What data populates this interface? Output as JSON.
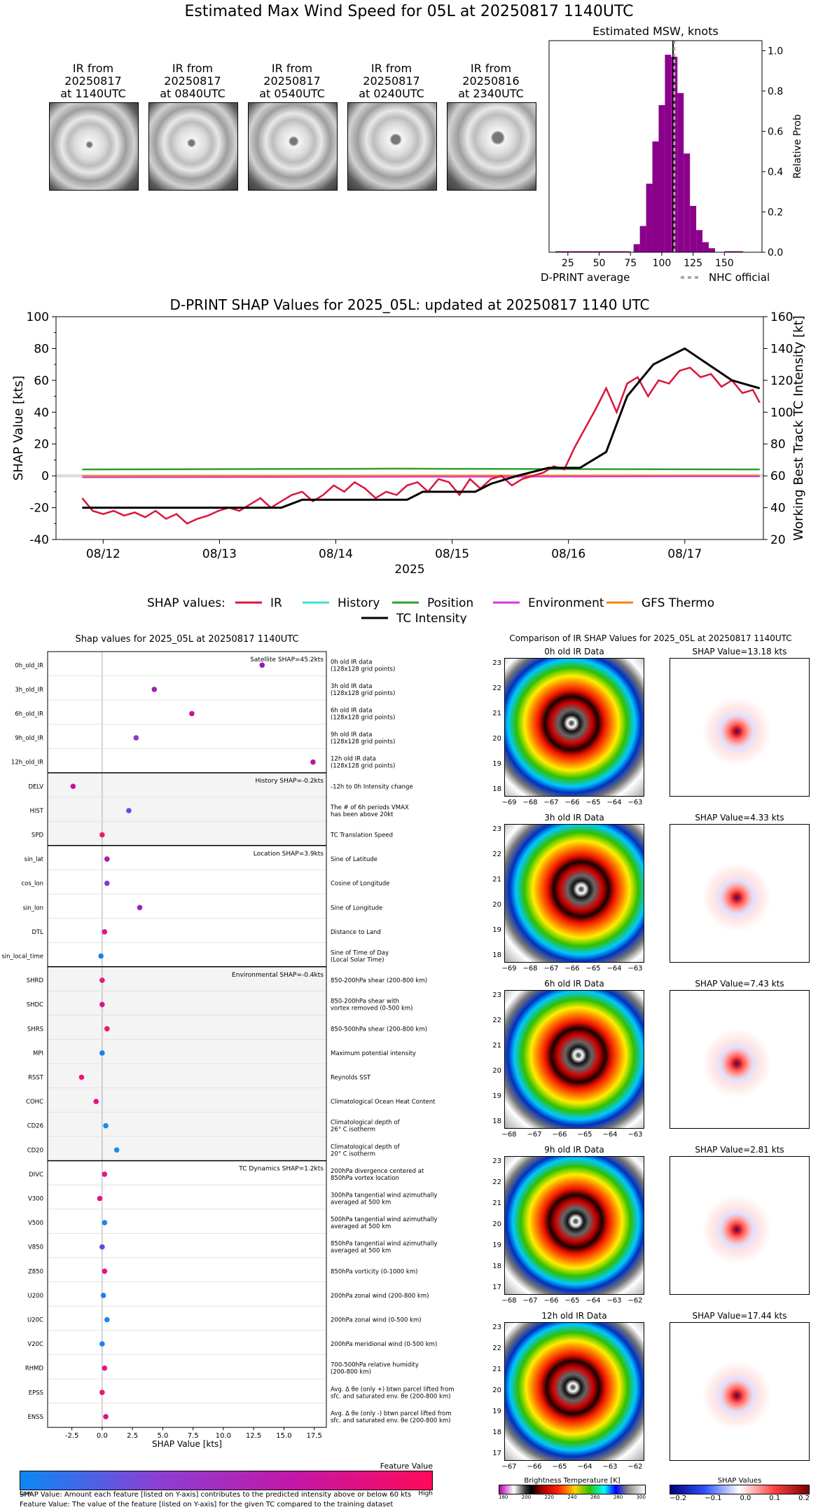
{
  "page_title": "Estimated Max Wind Speed for 05L at 20250817 1140UTC",
  "ir_thumbs": [
    {
      "label": "IR from\n20250817\nat 1140UTC"
    },
    {
      "label": "IR from\n20250817\nat 0840UTC"
    },
    {
      "label": "IR from\n20250817\nat 0540UTC"
    },
    {
      "label": "IR from\n20250817\nat 0240UTC"
    },
    {
      "label": "IR from\n20250816\nat 2340UTC"
    }
  ],
  "chart_data": [
    {
      "type": "bar",
      "title": "Estimated MSW, knots",
      "ylabel": "Relative Prob",
      "xlim": [
        10,
        180
      ],
      "ylim": [
        0,
        1.05
      ],
      "xticks": [
        "25",
        "50",
        "75",
        "100",
        "125",
        "150"
      ],
      "yticks": [
        "0.0",
        "0.2",
        "0.4",
        "0.6",
        "0.8",
        "1.0"
      ],
      "bar_color": "#8b008b",
      "bins": [
        {
          "x": 80,
          "value": 0.04
        },
        {
          "x": 85,
          "value": 0.13
        },
        {
          "x": 90,
          "value": 0.34
        },
        {
          "x": 95,
          "value": 0.55
        },
        {
          "x": 100,
          "value": 0.73
        },
        {
          "x": 105,
          "value": 0.98
        },
        {
          "x": 110,
          "value": 0.97
        },
        {
          "x": 115,
          "value": 0.79
        },
        {
          "x": 120,
          "value": 0.49
        },
        {
          "x": 125,
          "value": 0.23
        },
        {
          "x": 130,
          "value": 0.11
        },
        {
          "x": 135,
          "value": 0.05
        },
        {
          "x": 140,
          "value": 0.02
        }
      ],
      "dprint_average": 109,
      "nhc_official": 110,
      "legend": [
        "D-PRINT average",
        "NHC official"
      ]
    },
    {
      "type": "line",
      "title": "D-PRINT SHAP Values for 2025_05L: updated at 20250817 1140 UTC",
      "ylabel": "SHAP Value [kts]",
      "y2label": "Working Best Track TC Intensity [kt]",
      "xlabel": "2025",
      "ylim": [
        -40,
        100
      ],
      "y2lim": [
        20,
        160
      ],
      "yticks": [
        "-40",
        "-20",
        "0",
        "20",
        "40",
        "60",
        "80",
        "100"
      ],
      "y2ticks": [
        "20",
        "40",
        "60",
        "80",
        "100",
        "120",
        "140",
        "160"
      ],
      "xticks": [
        "08/12",
        "08/13",
        "08/14",
        "08/15",
        "08/16",
        "08/17"
      ],
      "legend_prefix": "SHAP values:",
      "series": [
        {
          "name": "IR",
          "color": "#dc143c"
        },
        {
          "name": "History",
          "color": "#40e0d0"
        },
        {
          "name": "Position",
          "color": "#2ca02c"
        },
        {
          "name": "Environment",
          "color": "#e033d6"
        },
        {
          "name": "GFS Thermo",
          "color": "#ff7f0e"
        },
        {
          "name": "TC Intensity",
          "color": "#000000"
        }
      ],
      "ir_points": [
        [
          0,
          -14
        ],
        [
          0.2,
          -22
        ],
        [
          0.4,
          -24
        ],
        [
          0.6,
          -22
        ],
        [
          0.8,
          -25
        ],
        [
          1.0,
          -23
        ],
        [
          1.2,
          -26
        ],
        [
          1.4,
          -22
        ],
        [
          1.6,
          -27
        ],
        [
          1.8,
          -24
        ],
        [
          2.0,
          -30
        ],
        [
          2.2,
          -27
        ],
        [
          2.4,
          -25
        ],
        [
          2.6,
          -22
        ],
        [
          2.8,
          -20
        ],
        [
          3.0,
          -22
        ],
        [
          3.2,
          -18
        ],
        [
          3.4,
          -14
        ],
        [
          3.6,
          -20
        ],
        [
          3.8,
          -16
        ],
        [
          4.0,
          -12
        ],
        [
          4.2,
          -10
        ],
        [
          4.4,
          -16
        ],
        [
          4.6,
          -12
        ],
        [
          4.8,
          -6
        ],
        [
          5.0,
          -10
        ],
        [
          5.2,
          -4
        ],
        [
          5.4,
          -8
        ],
        [
          5.6,
          -14
        ],
        [
          5.8,
          -10
        ],
        [
          6.0,
          -12
        ],
        [
          6.2,
          -6
        ],
        [
          6.4,
          -4
        ],
        [
          6.6,
          -10
        ],
        [
          6.8,
          -2
        ],
        [
          7.0,
          -4
        ],
        [
          7.2,
          -12
        ],
        [
          7.4,
          -2
        ],
        [
          7.6,
          -8
        ],
        [
          7.8,
          -2
        ],
        [
          8.0,
          0
        ],
        [
          8.2,
          -6
        ],
        [
          8.4,
          -2
        ],
        [
          8.6,
          0
        ],
        [
          8.8,
          2
        ],
        [
          9.0,
          6
        ],
        [
          9.2,
          4
        ],
        [
          9.4,
          18
        ],
        [
          9.6,
          30
        ],
        [
          9.8,
          42
        ],
        [
          10.0,
          55
        ],
        [
          10.2,
          40
        ],
        [
          10.4,
          58
        ],
        [
          10.6,
          62
        ],
        [
          10.8,
          50
        ],
        [
          11.0,
          60
        ],
        [
          11.2,
          58
        ],
        [
          11.4,
          66
        ],
        [
          11.6,
          68
        ],
        [
          11.8,
          62
        ],
        [
          12.0,
          64
        ],
        [
          12.2,
          56
        ],
        [
          12.4,
          60
        ],
        [
          12.6,
          52
        ],
        [
          12.8,
          54
        ],
        [
          12.93,
          46
        ]
      ],
      "position_points": [
        [
          0,
          4
        ],
        [
          6,
          4.5
        ],
        [
          12.93,
          4
        ]
      ],
      "history_points": [
        [
          0,
          -0.5
        ],
        [
          12.93,
          0
        ]
      ],
      "env_points": [
        [
          0,
          -1
        ],
        [
          12.93,
          -0.3
        ]
      ],
      "gfs_points": [
        [
          0,
          0
        ],
        [
          12.93,
          0.3
        ]
      ],
      "intensity_points": [
        [
          0,
          40
        ],
        [
          3.8,
          40
        ],
        [
          4.2,
          45
        ],
        [
          6.2,
          45
        ],
        [
          6.5,
          50
        ],
        [
          7.5,
          50
        ],
        [
          7.8,
          55
        ],
        [
          8.3,
          60
        ],
        [
          8.9,
          65
        ],
        [
          9.5,
          65
        ],
        [
          10.0,
          75
        ],
        [
          10.4,
          110
        ],
        [
          10.9,
          130
        ],
        [
          11.5,
          140
        ],
        [
          12.4,
          120
        ],
        [
          12.93,
          115
        ]
      ]
    },
    {
      "type": "scatter",
      "title": "Shap values for 2025_05L at 20250817 1140UTC",
      "xlabel": "SHAP Value [kts]",
      "xlim": [
        -4.5,
        18.5
      ],
      "xticks": [
        "-2.5",
        "0.0",
        "2.5",
        "5.0",
        "7.5",
        "10.0",
        "12.5",
        "15.0",
        "17.5"
      ],
      "groups": [
        {
          "label": "Satellite SHAP=45.2kts",
          "shaded": false,
          "features": [
            {
              "name": "0h_old_IR",
              "desc": "0h old IR data\n(128x128 grid points)",
              "value": 13.2,
              "color": "#8e1fb3"
            },
            {
              "name": "3h_old_IR",
              "desc": "3h old IR data\n(128x128 grid points)",
              "value": 4.3,
              "color": "#a21fb0"
            },
            {
              "name": "6h_old_IR",
              "desc": "6h old IR data\n(128x128 grid points)",
              "value": 7.4,
              "color": "#c2188f"
            },
            {
              "name": "9h_old_IR",
              "desc": "9h old IR data\n(128x128 grid points)",
              "value": 2.8,
              "color": "#8c35c9"
            },
            {
              "name": "12h_old_IR",
              "desc": "12h old IR data\n(128x128 grid points)",
              "value": 17.4,
              "color": "#b4189f"
            }
          ]
        },
        {
          "label": "History SHAP=-0.2kts",
          "shaded": true,
          "features": [
            {
              "name": "DELV",
              "desc": "-12h to 0h Intensity change",
              "value": -2.4,
              "color": "#c413a0"
            },
            {
              "name": "HIST",
              "desc": "The # of 6h periods VMAX\nhas been above 20kt",
              "value": 2.2,
              "color": "#6e4ad8"
            },
            {
              "name": "SPD",
              "desc": "TC Translation Speed",
              "value": 0.0,
              "color": "#ea1a72"
            }
          ]
        },
        {
          "label": "Location SHAP=3.9kts",
          "shaded": false,
          "features": [
            {
              "name": "sin_lat",
              "desc": "Sine of Latitude",
              "value": 0.4,
              "color": "#b21aa7"
            },
            {
              "name": "cos_lon",
              "desc": "Cosine of Longitude",
              "value": 0.4,
              "color": "#8a36c7"
            },
            {
              "name": "sin_lon",
              "desc": "Sine of Longitude",
              "value": 3.1,
              "color": "#9a22bb"
            },
            {
              "name": "DTL",
              "desc": "Distance to Land",
              "value": 0.2,
              "color": "#e21682"
            },
            {
              "name": "sin_local_time",
              "desc": "Sine of Time of Day\n(Local Solar Time)",
              "value": -0.1,
              "color": "#1a80ee"
            }
          ]
        },
        {
          "label": "Environmental SHAP=-0.4kts",
          "shaded": true,
          "features": [
            {
              "name": "SHRD",
              "desc": "850-200hPa shear (200-800 km)",
              "value": 0.0,
              "color": "#e8157c"
            },
            {
              "name": "SHDC",
              "desc": "850-200hPa shear with\nvortex removed (0-500 km)",
              "value": 0.0,
              "color": "#d6148e"
            },
            {
              "name": "SHRS",
              "desc": "850-500hPa shear (200-800 km)",
              "value": 0.4,
              "color": "#ee1670"
            },
            {
              "name": "MPI",
              "desc": "Maximum potential intensity",
              "value": 0.0,
              "color": "#1a7ff0"
            },
            {
              "name": "RSST",
              "desc": "Reynolds SST",
              "value": -1.7,
              "color": "#e9157d"
            },
            {
              "name": "COHC",
              "desc": "Climatological Ocean Heat Content",
              "value": -0.5,
              "color": "#e21584"
            },
            {
              "name": "CD26",
              "desc": "Climatological depth of\n26° C isotherm",
              "value": 0.3,
              "color": "#1b88ee"
            },
            {
              "name": "CD20",
              "desc": "Climatological depth of\n20° C isotherm",
              "value": 1.2,
              "color": "#1f8cec"
            }
          ]
        },
        {
          "label": "TC Dynamics SHAP=1.2kts",
          "shaded": false,
          "features": [
            {
              "name": "DIVC",
              "desc": "200hPa divergence centered at\n850hPa vortex location",
              "value": 0.2,
              "color": "#e61680"
            },
            {
              "name": "V300",
              "desc": "300hPa tangential wind azimuthally\naveraged at 500 km",
              "value": -0.2,
              "color": "#e2157f"
            },
            {
              "name": "V500",
              "desc": "500hPa tangential wind azimuthally\naveraged at 500 km",
              "value": 0.2,
              "color": "#1c86ef"
            },
            {
              "name": "V850",
              "desc": "850hPa tangential wind azimuthally\naveraged at 500 km",
              "value": 0.0,
              "color": "#6b49d6"
            },
            {
              "name": "Z850",
              "desc": "850hPa vorticity (0-1000 km)",
              "value": 0.2,
              "color": "#e5157f"
            },
            {
              "name": "U200",
              "desc": "200hPa zonal wind (200-800 km)",
              "value": 0.1,
              "color": "#1a84ef"
            },
            {
              "name": "U20C",
              "desc": "200hPa zonal wind (0-500 km)",
              "value": 0.4,
              "color": "#1a88ee"
            },
            {
              "name": "V20C",
              "desc": "200hPa meridional wind (0-500 km)",
              "value": 0.0,
              "color": "#1a84ef"
            },
            {
              "name": "RHMD",
              "desc": "700-500hPa relative humidity\n(200-800 km)",
              "value": 0.2,
              "color": "#e81679"
            },
            {
              "name": "EPSS",
              "desc": "Avg. Δ θe (only +) btwn parcel lifted from\nsfc. and saturated env. θe (200-800 km)",
              "value": 0.0,
              "color": "#e4157f"
            },
            {
              "name": "ENSS",
              "desc": "Avg. Δ θe (only -) btwn parcel lifted from\nsfc. and saturated env. θe (200-800 km)",
              "value": 0.3,
              "color": "#d71590"
            }
          ]
        }
      ]
    }
  ],
  "feature_value_bar": {
    "title": "Feature Value",
    "low": "Low",
    "high": "High"
  },
  "footnotes": [
    "SHAP Value: Amount each feature [listed on Y-axis] contributes to the predicted intensity above or below 60 kts",
    "Feature Value: The value of the feature [listed on Y-axis] for the given TC compared to the training dataset"
  ],
  "comparison": {
    "title": "Comparison of IR SHAP Values for 2025_05L at 20250817 1140UTC",
    "rows": [
      {
        "ir_title": "0h old IR Data",
        "shap_title": "SHAP Value=13.18 kts",
        "yticks": [
          "23",
          "22",
          "21",
          "20",
          "19",
          "18"
        ],
        "xticks": [
          "−69",
          "−68",
          "−67",
          "−66",
          "−65",
          "−64",
          "−63"
        ]
      },
      {
        "ir_title": "3h old IR Data",
        "shap_title": "SHAP Value=4.33 kts",
        "yticks": [
          "23",
          "22",
          "21",
          "20",
          "19",
          "18"
        ],
        "xticks": [
          "−69",
          "−68",
          "−67",
          "−66",
          "−65",
          "−64",
          "−63"
        ]
      },
      {
        "ir_title": "6h old IR Data",
        "shap_title": "SHAP Value=7.43 kts",
        "yticks": [
          "23",
          "22",
          "21",
          "20",
          "19",
          "18"
        ],
        "xticks": [
          "−68",
          "−67",
          "−66",
          "−65",
          "−64",
          "−63"
        ]
      },
      {
        "ir_title": "9h old IR Data",
        "shap_title": "SHAP Value=2.81 kts",
        "yticks": [
          "23",
          "22",
          "21",
          "20",
          "19",
          "18",
          "17"
        ],
        "xticks": [
          "−68",
          "−67",
          "−66",
          "−65",
          "−64",
          "−63",
          "−62"
        ]
      },
      {
        "ir_title": "12h old IR Data",
        "shap_title": "SHAP Value=17.44 kts",
        "yticks": [
          "23",
          "22",
          "21",
          "20",
          "19",
          "18",
          "17"
        ],
        "xticks": [
          "−67",
          "−66",
          "−65",
          "−64",
          "−63",
          "−62"
        ]
      }
    ],
    "bt_colorbar": {
      "title": "Brightness Temperature [K]",
      "ticks": [
        "180",
        "200",
        "220",
        "240",
        "260",
        "280",
        "300"
      ]
    },
    "shap_colorbar": {
      "title": "SHAP Values",
      "ticks": [
        "−0.2",
        "−0.1",
        "0.0",
        "0.1",
        "0.2"
      ]
    }
  }
}
